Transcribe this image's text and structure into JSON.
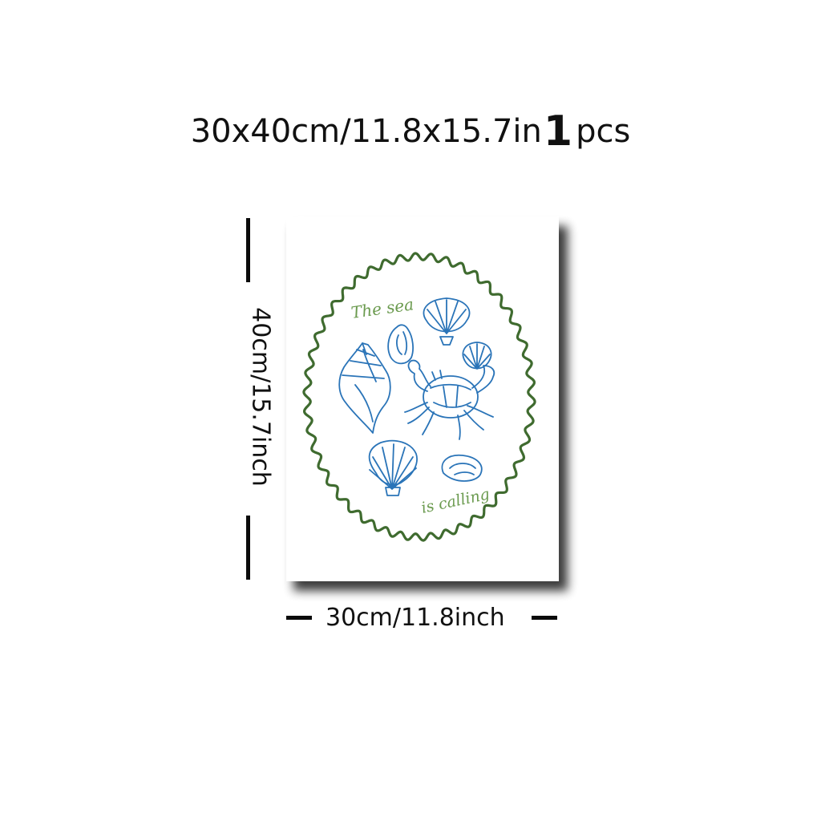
{
  "headline": {
    "size_text": "30x40cm/11.8x15.7in",
    "quantity_number": "1",
    "quantity_unit": "pcs"
  },
  "dimensions": {
    "height_label": "40cm/15.7inch",
    "width_label": "30cm/11.8inch"
  },
  "poster": {
    "text_top": "The sea",
    "text_bottom": "is calling",
    "frame_color": "#3f6b2f",
    "illustration_color": "#2a74b8",
    "illustrations": [
      "conch-shell",
      "oyster-shell",
      "scallop-shell",
      "small-scallop-shell",
      "crab",
      "large-scallop-shell",
      "oyster-shell-bottom"
    ]
  }
}
